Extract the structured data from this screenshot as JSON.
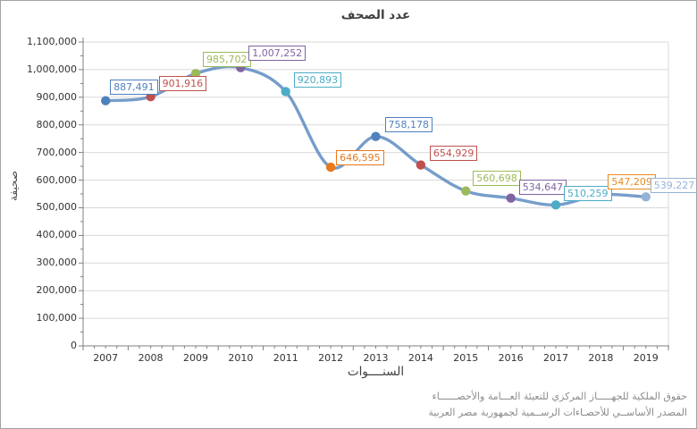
{
  "window": {
    "background_color": "#ffffff",
    "border_color": "#a3a3a3"
  },
  "chart_data": {
    "type": "line",
    "title": "عدد الصحف",
    "xlabel": "السنــــوات",
    "ylabel": "صحيفة",
    "categories": [
      "2007",
      "2008",
      "2009",
      "2010",
      "2011",
      "2012",
      "2013",
      "2014",
      "2015",
      "2016",
      "2017",
      "2018",
      "2019"
    ],
    "values": [
      887491,
      901916,
      985702,
      1007252,
      920893,
      646595,
      758178,
      654929,
      560698,
      534647,
      510259,
      547209,
      539227
    ],
    "data_labels": [
      "887,491",
      "901,916",
      "985,702",
      "1,007,252",
      "920,893",
      "646,595",
      "758,178",
      "654,929",
      "560,698",
      "534,647",
      "510,259",
      "547,209",
      "539,227"
    ],
    "ylim": [
      0,
      1100000
    ],
    "y_tick_step": 100000,
    "y_tick_labels": [
      "0",
      "100,000",
      "200,000",
      "300,000",
      "400,000",
      "500,000",
      "600,000",
      "700,000",
      "800,000",
      "900,000",
      "1,000,000",
      "1,100,000"
    ],
    "grid": "horizontal-on",
    "legend": "none",
    "line_color": "#4F81BD",
    "gridline_color": "#d9d9d9",
    "axis_color": "#808080",
    "tick_label_color": "#333333",
    "point_colors": [
      "#4F81BD",
      "#C0504D",
      "#9BBB59",
      "#8064A2",
      "#4BACC6",
      "#E8791D",
      "#4F81BD",
      "#C0504D",
      "#9BBB59",
      "#8064A2",
      "#4BACC6",
      "#E8891D",
      "#95B3D7"
    ]
  },
  "footer": {
    "line1": "حقوق الملكية للجهـــــاز المركزي للتعيئة العـــامة والأحصــــــاء",
    "line2": "المصدر الأساســي للأحصـاءات الرســمية لجمهورية مصر العربية"
  }
}
